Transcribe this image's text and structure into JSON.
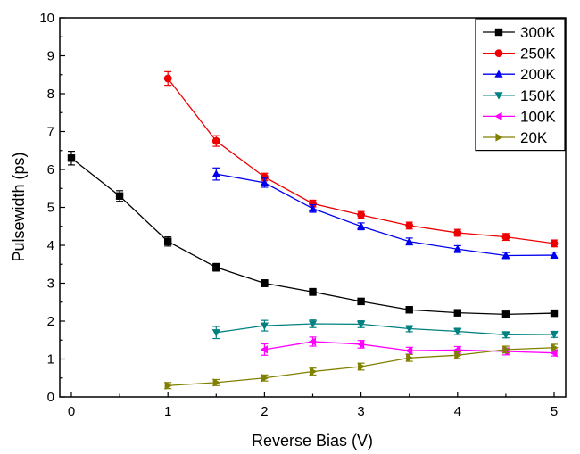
{
  "chart_data": {
    "type": "line",
    "title": "",
    "xlabel": "Reverse Bias (V)",
    "ylabel": "Pulsewidth (ps)",
    "xlim": [
      -0.12,
      5.12
    ],
    "ylim": [
      0,
      10
    ],
    "xticks": [
      0,
      1,
      2,
      3,
      4,
      5
    ],
    "yticks": [
      0,
      1,
      2,
      3,
      4,
      5,
      6,
      7,
      8,
      9,
      10
    ],
    "grid": false,
    "legend_position": "top-right",
    "series": [
      {
        "name": "300K",
        "color": "#000000",
        "marker": "square",
        "x": [
          0,
          0.5,
          1,
          1.5,
          2,
          2.5,
          3,
          3.5,
          4,
          4.5,
          5
        ],
        "y": [
          6.3,
          5.3,
          4.1,
          3.42,
          3.0,
          2.77,
          2.52,
          2.3,
          2.22,
          2.18,
          2.21
        ],
        "err": [
          0.18,
          0.14,
          0.12,
          0.1,
          0.09,
          0.09,
          0.08,
          0.08,
          0.08,
          0.08,
          0.08
        ]
      },
      {
        "name": "250K",
        "color": "#ee0000",
        "marker": "circle",
        "x": [
          1,
          1.5,
          2,
          2.5,
          3,
          3.5,
          4,
          4.5,
          5
        ],
        "y": [
          8.4,
          6.75,
          5.8,
          5.1,
          4.8,
          4.52,
          4.33,
          4.22,
          4.05
        ],
        "err": [
          0.18,
          0.14,
          0.1,
          0.09,
          0.09,
          0.09,
          0.09,
          0.09,
          0.09
        ]
      },
      {
        "name": "200K",
        "color": "#0000ee",
        "marker": "triangle-up",
        "x": [
          1.5,
          2,
          2.5,
          3,
          3.5,
          4,
          4.5,
          5
        ],
        "y": [
          5.88,
          5.65,
          4.97,
          4.5,
          4.1,
          3.9,
          3.73,
          3.74
        ],
        "err": [
          0.16,
          0.12,
          0.1,
          0.09,
          0.09,
          0.09,
          0.08,
          0.08
        ]
      },
      {
        "name": "150K",
        "color": "#008080",
        "marker": "triangle-down",
        "x": [
          1.5,
          2,
          2.5,
          3,
          3.5,
          4,
          4.5,
          5
        ],
        "y": [
          1.7,
          1.88,
          1.93,
          1.92,
          1.8,
          1.73,
          1.64,
          1.65
        ],
        "err": [
          0.16,
          0.14,
          0.1,
          0.09,
          0.08,
          0.08,
          0.08,
          0.08
        ]
      },
      {
        "name": "100K",
        "color": "#ff00ff",
        "marker": "triangle-left",
        "x": [
          2,
          2.5,
          3,
          3.5,
          4,
          4.5,
          5
        ],
        "y": [
          1.25,
          1.46,
          1.39,
          1.22,
          1.24,
          1.2,
          1.16
        ],
        "err": [
          0.15,
          0.12,
          0.1,
          0.09,
          0.09,
          0.09,
          0.08
        ]
      },
      {
        "name": "20K",
        "color": "#808000",
        "marker": "triangle-right",
        "x": [
          1,
          1.5,
          2,
          2.5,
          3,
          3.5,
          4,
          4.5,
          5
        ],
        "y": [
          0.3,
          0.38,
          0.5,
          0.67,
          0.8,
          1.03,
          1.1,
          1.25,
          1.3
        ],
        "err": [
          0.08,
          0.08,
          0.08,
          0.09,
          0.09,
          0.09,
          0.09,
          0.09,
          0.09
        ]
      }
    ]
  }
}
